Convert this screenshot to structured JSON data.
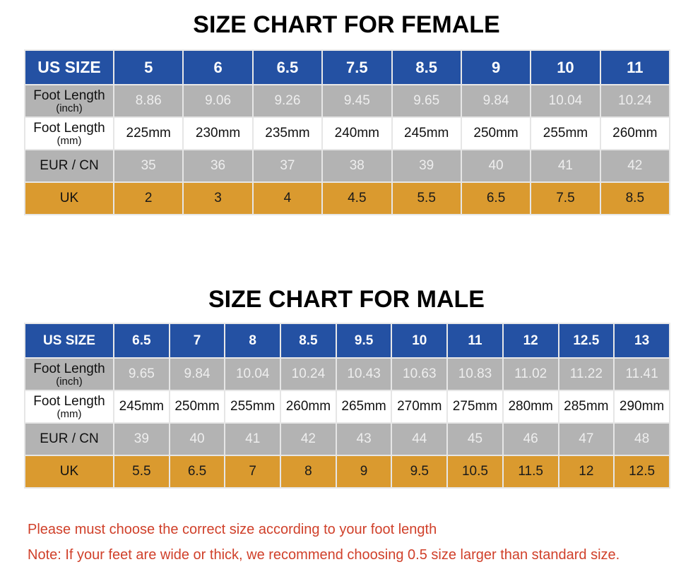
{
  "female": {
    "title": "SIZE CHART FOR FEMALE",
    "labels": {
      "us": "US SIZE",
      "inch_main": "Foot Length",
      "inch_sub": "(inch)",
      "mm_main": "Foot Length",
      "mm_sub": "(mm)",
      "eur": "EUR / CN",
      "uk": "UK"
    },
    "us": [
      "5",
      "6",
      "6.5",
      "7.5",
      "8.5",
      "9",
      "10",
      "11"
    ],
    "inch": [
      "8.86",
      "9.06",
      "9.26",
      "9.45",
      "9.65",
      "9.84",
      "10.04",
      "10.24"
    ],
    "mm": [
      "225mm",
      "230mm",
      "235mm",
      "240mm",
      "245mm",
      "250mm",
      "255mm",
      "260mm"
    ],
    "eur": [
      "35",
      "36",
      "37",
      "38",
      "39",
      "40",
      "41",
      "42"
    ],
    "uk": [
      "2",
      "3",
      "4",
      "4.5",
      "5.5",
      "6.5",
      "7.5",
      "8.5"
    ]
  },
  "male": {
    "title": "SIZE CHART FOR MALE",
    "labels": {
      "us": "US SIZE",
      "inch_main": "Foot Length",
      "inch_sub": "(inch)",
      "mm_main": "Foot Length",
      "mm_sub": "(mm)",
      "eur": "EUR / CN",
      "uk": "UK"
    },
    "us": [
      "6.5",
      "7",
      "8",
      "8.5",
      "9.5",
      "10",
      "11",
      "12",
      "12.5",
      "13"
    ],
    "inch": [
      "9.65",
      "9.84",
      "10.04",
      "10.24",
      "10.43",
      "10.63",
      "10.83",
      "11.02",
      "11.22",
      "11.41"
    ],
    "mm": [
      "245mm",
      "250mm",
      "255mm",
      "260mm",
      "265mm",
      "270mm",
      "275mm",
      "280mm",
      "285mm",
      "290mm"
    ],
    "eur": [
      "39",
      "40",
      "41",
      "42",
      "43",
      "44",
      "45",
      "46",
      "47",
      "48"
    ],
    "uk": [
      "5.5",
      "6.5",
      "7",
      "8",
      "9",
      "9.5",
      "10.5",
      "11.5",
      "12",
      "12.5"
    ]
  },
  "notes": [
    "Please must choose the correct size  according to your foot length",
    "Note: If your feet are wide or thick, we recommend choosing 0.5 size larger than standard size."
  ],
  "colors": {
    "header_blue": "#2451a3",
    "row_gray": "#b3b3b3",
    "uk_orange": "#da9a2f",
    "note_red": "#d0402a"
  }
}
